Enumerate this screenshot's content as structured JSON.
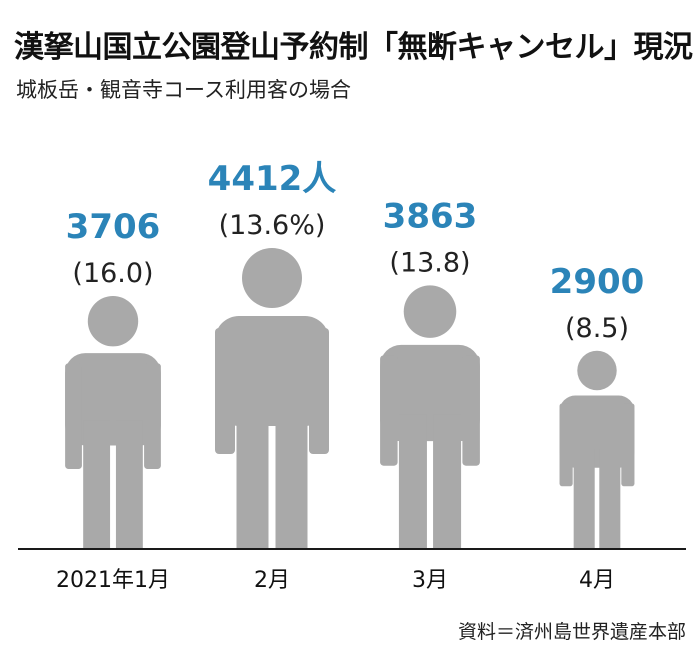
{
  "title": "漢拏山国立公園登山予約制「無断キャンセル」現況",
  "subtitle": "城板岳・観音寺コース利用客の場合",
  "source": "資料＝済州島世界遺産本部",
  "colors": {
    "figure": "#a9a9a9",
    "value": "#2b84b8",
    "axis": "#1a1a1a"
  },
  "chart_data": {
    "type": "bar",
    "categories": [
      "2021年1月",
      "2月",
      "3月",
      "4月"
    ],
    "values": [
      3706,
      4412,
      3863,
      2900
    ],
    "value_labels": [
      "3706",
      "4412人",
      "3863",
      "2900"
    ],
    "rate_labels": [
      "(16.0)",
      "(13.6%)",
      "(13.8)",
      "(8.5)"
    ],
    "rates": [
      16.0,
      13.6,
      13.8,
      8.5
    ]
  }
}
